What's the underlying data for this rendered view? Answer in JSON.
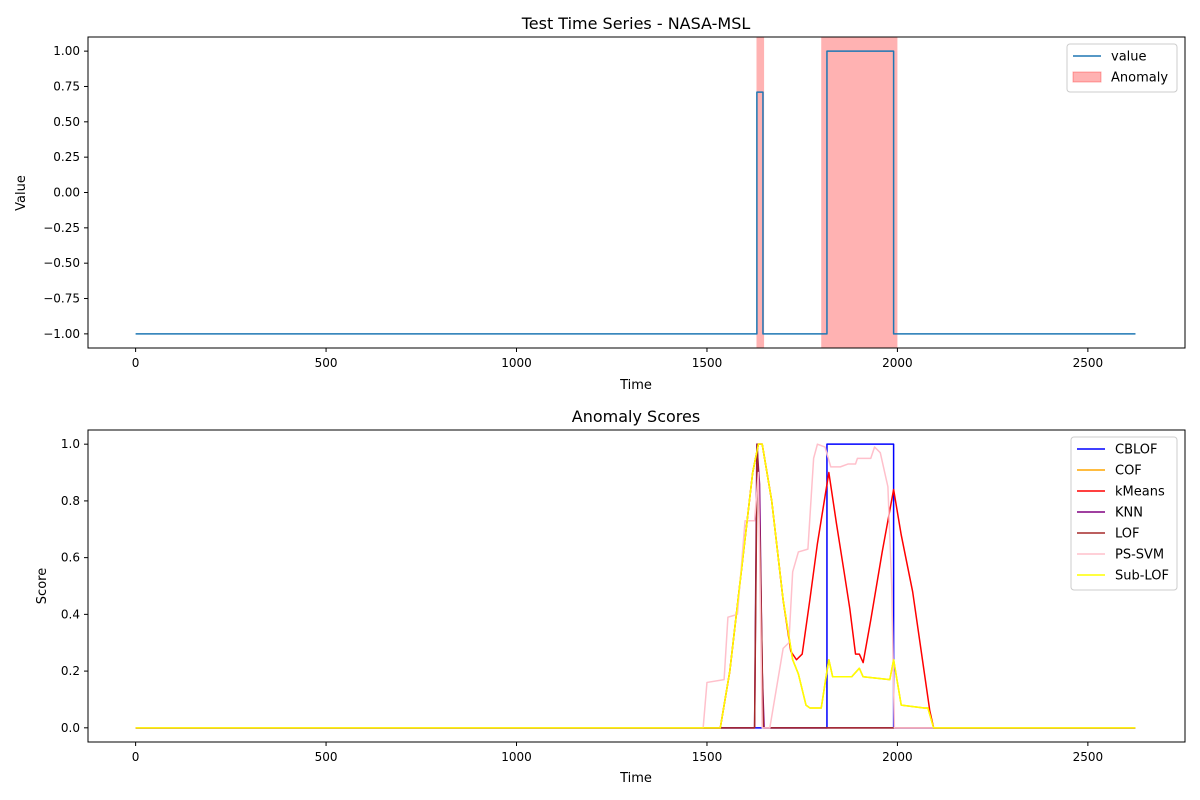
{
  "chart_data": [
    {
      "type": "line",
      "title": "Test Time Series - NASA-MSL",
      "xlabel": "Time",
      "ylabel": "Value",
      "xlim": [
        -125,
        2755
      ],
      "ylim": [
        -1.1,
        1.1
      ],
      "xticks": [
        0,
        500,
        1000,
        1500,
        2000,
        2500
      ],
      "yticks": [
        -1.0,
        -0.75,
        -0.5,
        -0.25,
        0.0,
        0.25,
        0.5,
        0.75,
        1.0
      ],
      "ytick_labels": [
        "−1.00",
        "−0.75",
        "−0.50",
        "−0.25",
        "0.00",
        "0.25",
        "0.50",
        "0.75",
        "1.00"
      ],
      "legend_position": "upper right",
      "series": [
        {
          "name": "value",
          "color": "#1f77b4",
          "points": [
            [
              0,
              -1
            ],
            [
              1631,
              -1
            ],
            [
              1631,
              0.71
            ],
            [
              1647,
              0.71
            ],
            [
              1647,
              -1
            ],
            [
              1815,
              -1
            ],
            [
              1815,
              1
            ],
            [
              1990,
              1
            ],
            [
              1990,
              -1
            ],
            [
              2625,
              -1
            ]
          ]
        }
      ],
      "spans": [
        {
          "name": "Anomaly",
          "color": "#ff0000",
          "alpha": 0.3,
          "ranges": [
            [
              1630,
              1650
            ],
            [
              1800,
              2000
            ]
          ]
        }
      ]
    },
    {
      "type": "line",
      "title": "Anomaly Scores",
      "xlabel": "Time",
      "ylabel": "Score",
      "xlim": [
        -125,
        2755
      ],
      "ylim": [
        -0.05,
        1.05
      ],
      "xticks": [
        0,
        500,
        1000,
        1500,
        2000,
        2500
      ],
      "yticks": [
        0.0,
        0.2,
        0.4,
        0.6,
        0.8,
        1.0
      ],
      "ytick_labels": [
        "0.0",
        "0.2",
        "0.4",
        "0.6",
        "0.8",
        "1.0"
      ],
      "legend_position": "upper right",
      "series": [
        {
          "name": "CBLOF",
          "color": "#0000ff",
          "points": [
            [
              0,
              0
            ],
            [
              1815,
              0
            ],
            [
              1815,
              1
            ],
            [
              1990,
              1
            ],
            [
              1990,
              0
            ],
            [
              2625,
              0
            ]
          ]
        },
        {
          "name": "COF",
          "color": "#ffa500",
          "points": [
            [
              0,
              0
            ],
            [
              1535,
              0
            ],
            [
              1560,
              0.2
            ],
            [
              1590,
              0.55
            ],
            [
              1620,
              0.9
            ],
            [
              1635,
              1.0
            ],
            [
              1645,
              1.0
            ],
            [
              1670,
              0.8
            ],
            [
              1700,
              0.45
            ],
            [
              1725,
              0.24
            ],
            [
              1740,
              0.19
            ],
            [
              1760,
              0.08
            ],
            [
              1770,
              0.07
            ],
            [
              1800,
              0.07
            ],
            [
              1815,
              0.2
            ],
            [
              1820,
              0.24
            ],
            [
              1830,
              0.18
            ],
            [
              1880,
              0.18
            ],
            [
              1900,
              0.21
            ],
            [
              1910,
              0.18
            ],
            [
              1980,
              0.17
            ],
            [
              1990,
              0.24
            ],
            [
              2010,
              0.08
            ],
            [
              2070,
              0.07
            ],
            [
              2080,
              0.07
            ],
            [
              2095,
              0
            ],
            [
              2625,
              0
            ]
          ]
        },
        {
          "name": "kMeans",
          "color": "#ff0000",
          "points": [
            [
              0,
              0
            ],
            [
              1535,
              0
            ],
            [
              1560,
              0.2
            ],
            [
              1590,
              0.55
            ],
            [
              1620,
              0.9
            ],
            [
              1635,
              1.0
            ],
            [
              1645,
              1.0
            ],
            [
              1670,
              0.8
            ],
            [
              1700,
              0.45
            ],
            [
              1720,
              0.27
            ],
            [
              1735,
              0.24
            ],
            [
              1750,
              0.26
            ],
            [
              1770,
              0.45
            ],
            [
              1790,
              0.65
            ],
            [
              1820,
              0.9
            ],
            [
              1840,
              0.72
            ],
            [
              1860,
              0.55
            ],
            [
              1875,
              0.42
            ],
            [
              1890,
              0.26
            ],
            [
              1900,
              0.26
            ],
            [
              1910,
              0.23
            ],
            [
              1930,
              0.38
            ],
            [
              1960,
              0.62
            ],
            [
              1990,
              0.84
            ],
            [
              2010,
              0.68
            ],
            [
              2040,
              0.48
            ],
            [
              2070,
              0.2
            ],
            [
              2085,
              0.06
            ],
            [
              2095,
              0
            ],
            [
              2625,
              0
            ]
          ]
        },
        {
          "name": "KNN",
          "color": "#800080",
          "points": [
            [
              0,
              0
            ],
            [
              1625,
              0
            ],
            [
              1631,
              1.0
            ],
            [
              1638,
              0.86
            ],
            [
              1645,
              0.2
            ],
            [
              1650,
              0
            ],
            [
              2625,
              0
            ]
          ]
        },
        {
          "name": "LOF",
          "color": "#a52a2a",
          "points": [
            [
              0,
              0
            ],
            [
              1625,
              0
            ],
            [
              1632,
              1.0
            ],
            [
              1640,
              0.6
            ],
            [
              1648,
              0
            ],
            [
              2625,
              0
            ]
          ]
        },
        {
          "name": "PS-SVM",
          "color": "#ffc0cb",
          "points": [
            [
              0,
              0
            ],
            [
              1490,
              0
            ],
            [
              1500,
              0.16
            ],
            [
              1545,
              0.17
            ],
            [
              1555,
              0.39
            ],
            [
              1580,
              0.4
            ],
            [
              1600,
              0.73
            ],
            [
              1625,
              0.73
            ],
            [
              1635,
              0.9
            ],
            [
              1645,
              0.0
            ],
            [
              1665,
              0
            ],
            [
              1700,
              0.28
            ],
            [
              1715,
              0.3
            ],
            [
              1725,
              0.55
            ],
            [
              1740,
              0.62
            ],
            [
              1765,
              0.63
            ],
            [
              1780,
              0.95
            ],
            [
              1790,
              1.0
            ],
            [
              1810,
              0.99
            ],
            [
              1825,
              0.92
            ],
            [
              1850,
              0.92
            ],
            [
              1870,
              0.93
            ],
            [
              1890,
              0.93
            ],
            [
              1895,
              0.95
            ],
            [
              1930,
              0.95
            ],
            [
              1940,
              0.99
            ],
            [
              1955,
              0.97
            ],
            [
              1975,
              0.85
            ],
            [
              1985,
              0.5
            ],
            [
              1992,
              0
            ],
            [
              2625,
              0
            ]
          ]
        },
        {
          "name": "Sub-LOF",
          "color": "#ffff00",
          "points": [
            [
              0,
              0
            ],
            [
              1535,
              0
            ],
            [
              1560,
              0.2
            ],
            [
              1590,
              0.55
            ],
            [
              1620,
              0.9
            ],
            [
              1635,
              1.0
            ],
            [
              1645,
              1.0
            ],
            [
              1670,
              0.8
            ],
            [
              1700,
              0.45
            ],
            [
              1725,
              0.24
            ],
            [
              1740,
              0.19
            ],
            [
              1760,
              0.08
            ],
            [
              1770,
              0.07
            ],
            [
              1800,
              0.07
            ],
            [
              1815,
              0.2
            ],
            [
              1820,
              0.24
            ],
            [
              1830,
              0.18
            ],
            [
              1880,
              0.18
            ],
            [
              1900,
              0.21
            ],
            [
              1910,
              0.18
            ],
            [
              1980,
              0.17
            ],
            [
              1990,
              0.24
            ],
            [
              2010,
              0.08
            ],
            [
              2070,
              0.07
            ],
            [
              2080,
              0.07
            ],
            [
              2095,
              0
            ],
            [
              2625,
              0
            ]
          ]
        }
      ]
    }
  ]
}
